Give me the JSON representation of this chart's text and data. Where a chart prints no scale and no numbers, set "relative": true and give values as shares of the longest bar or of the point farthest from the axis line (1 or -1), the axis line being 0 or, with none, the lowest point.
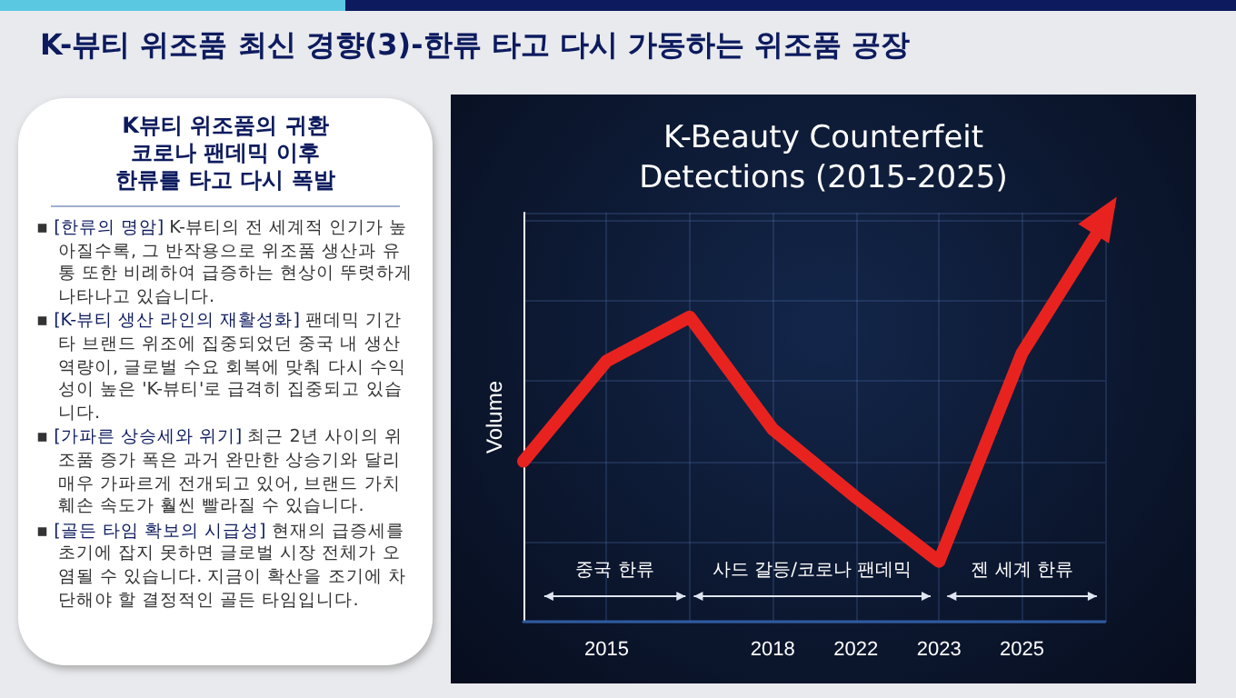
{
  "chart_data": [
    {
      "type": "other",
      "title": "K-뷰티 위조품 최신 경향(3)-한류 타고 다시 가동하는 위조품 공장",
      "subtitle": "K뷰티 위조품의 귀환\n코로나 팬데믹 이후\n한류를 타고 다시 폭발",
      "annotations": [
        "▪ [한류의 명암] K-뷰티의 전 세계적 인기가 높아질수록, 그 반작용으로 위조품 생산과 유통 또한 비례하여 급증하는 현상이 뚜렷하게 나타나고 있습니다.",
        "▪ [K-뷰티 생산 라인의 재활성화] 팬데믹 기간 타 브랜드 위조에 집중되었던 중국 내 생산 역량이, 글로벌 수요 회복에 맞춰 다시 수익성이 높은 'K-뷰티'로 급격히 집중되고 있습니다.",
        "▪ [가파른 상승세와 위기] 최근 2년 사이의 위조품 증가 폭은 과거 완만한 상승기와 달리 매우 가파르게 전개되고 있어, 브랜드 가치 훼손 속도가 훨씬 빨라질 수 있습니다.",
        "▪ [골든 타임 확보의 시급성] 현재의 급증세를 초기에 잡지 못하면 글로벌 시장 전체가 오염될 수 있습니다. 지금이 확산을 조기에 차단해야 할 결정적인 골든 타임입니다."
      ]
    },
    {
      "type": "line",
      "title": "K-Beauty Counterfeit\nDetections (2015-2025)",
      "ylabel": "Volume",
      "relative": true,
      "grid": true,
      "line_style": "solid",
      "categories": [
        null,
        "2015",
        null,
        "2018",
        "2022",
        "2023",
        "2025",
        null
      ],
      "series": [
        {
          "color": "#e8231f",
          "values": [
            0.4,
            0.65,
            0.76,
            0.48,
            0.31,
            0.15,
            0.67,
            1
          ]
        }
      ],
      "annotations": [
        "중국 한류",
        "사드 갈등/코로나 팬데믹",
        "젠 세계 한류"
      ]
    }
  ]
}
